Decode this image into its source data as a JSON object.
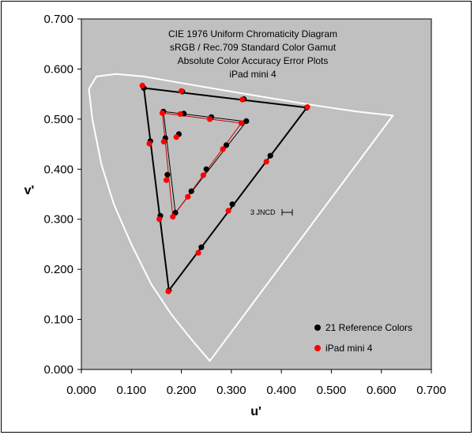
{
  "chart_data": {
    "type": "scatter",
    "title_lines": [
      "CIE 1976 Uniform Chromaticity Diagram",
      "sRGB / Rec.709 Standard Color Gamut",
      "Absolute Color Accuracy Error Plots",
      "iPad mini 4"
    ],
    "xlabel": "u'",
    "ylabel": "v'",
    "xlim": [
      0,
      0.7
    ],
    "ylim": [
      0,
      0.7
    ],
    "x_ticks": [
      "0.000",
      "0.100",
      "0.200",
      "0.300",
      "0.400",
      "0.500",
      "0.600",
      "0.700"
    ],
    "y_ticks": [
      "0.000",
      "0.100",
      "0.200",
      "0.300",
      "0.400",
      "0.500",
      "0.600",
      "0.700"
    ],
    "background_color": "#c0c0c0",
    "grid": false,
    "legend_position": "bottom-right",
    "annotation": "3 JNCD",
    "spectral_locus": [
      [
        0.257,
        0.017
      ],
      [
        0.22,
        0.06
      ],
      [
        0.18,
        0.11
      ],
      [
        0.14,
        0.17
      ],
      [
        0.1,
        0.25
      ],
      [
        0.065,
        0.33
      ],
      [
        0.04,
        0.41
      ],
      [
        0.022,
        0.5
      ],
      [
        0.015,
        0.56
      ],
      [
        0.03,
        0.585
      ],
      [
        0.07,
        0.59
      ],
      [
        0.125,
        0.585
      ],
      [
        0.2,
        0.572
      ],
      [
        0.3,
        0.555
      ],
      [
        0.45,
        0.53
      ],
      [
        0.55,
        0.515
      ],
      [
        0.623,
        0.507
      ]
    ],
    "gamut_triangles": [
      {
        "points": [
          [
            0.125,
            0.562
          ],
          [
            0.451,
            0.523
          ],
          [
            0.175,
            0.158
          ]
        ],
        "color": "#000000"
      },
      {
        "points": [
          [
            0.164,
            0.515
          ],
          [
            0.33,
            0.495
          ],
          [
            0.188,
            0.313
          ]
        ],
        "color": "#000000"
      },
      {
        "points": [
          [
            0.162,
            0.512
          ],
          [
            0.32,
            0.492
          ],
          [
            0.183,
            0.305
          ]
        ],
        "color": "#cc0000"
      }
    ],
    "series": [
      {
        "name": "21 Reference Colors",
        "color": "#000000",
        "x": [
          0.125,
          0.202,
          0.325,
          0.451,
          0.378,
          0.302,
          0.24,
          0.175,
          0.158,
          0.138,
          0.164,
          0.205,
          0.26,
          0.33,
          0.29,
          0.25,
          0.22,
          0.188,
          0.172,
          0.168,
          0.195
        ],
        "y": [
          0.562,
          0.555,
          0.54,
          0.523,
          0.427,
          0.33,
          0.244,
          0.158,
          0.307,
          0.456,
          0.515,
          0.511,
          0.504,
          0.496,
          0.448,
          0.4,
          0.356,
          0.313,
          0.389,
          0.462,
          0.47
        ]
      },
      {
        "name": "iPad mini 4",
        "color": "#ff0000",
        "x": [
          0.122,
          0.2,
          0.322,
          0.452,
          0.37,
          0.294,
          0.234,
          0.174,
          0.156,
          0.136,
          0.162,
          0.198,
          0.257,
          0.32,
          0.283,
          0.244,
          0.213,
          0.183,
          0.17,
          0.165,
          0.19
        ],
        "y": [
          0.567,
          0.556,
          0.539,
          0.524,
          0.415,
          0.317,
          0.233,
          0.156,
          0.3,
          0.451,
          0.512,
          0.51,
          0.5,
          0.492,
          0.44,
          0.388,
          0.345,
          0.305,
          0.378,
          0.455,
          0.464
        ]
      }
    ]
  }
}
